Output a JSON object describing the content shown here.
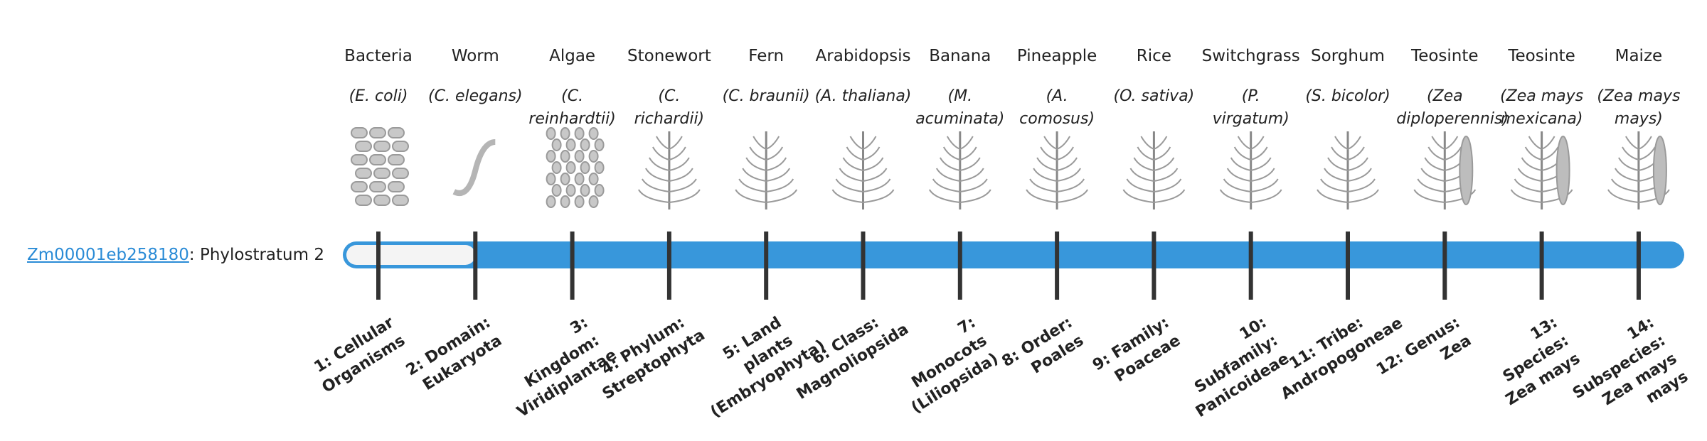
{
  "gene": {
    "id": "Zm00001eb258180",
    "phylostratum_text": ": Phylostratum 2"
  },
  "organisms": [
    {
      "name": "Bacteria",
      "species": "(E. coli)",
      "stratum": "1: Cellular Organisms"
    },
    {
      "name": "Worm",
      "species": "(C. elegans)",
      "stratum": "2: Domain: Eukaryota"
    },
    {
      "name": "Algae",
      "species": "(C. reinhardtii)",
      "stratum": "3: Kingdom: Viridiplantae"
    },
    {
      "name": "Stonewort",
      "species": "(C. richardii)",
      "stratum": "4: Phylum: Streptophyta"
    },
    {
      "name": "Fern",
      "species": "(C. braunii)",
      "stratum": "5: Land plants (Embryophyta)"
    },
    {
      "name": "Arabidopsis",
      "species": "(A. thaliana)",
      "stratum": "6: Class: Magnoliopsida"
    },
    {
      "name": "Banana",
      "species": "(M. acuminata)",
      "stratum": "7: Monocots (Liliopsida)"
    },
    {
      "name": "Pineapple",
      "species": "(A. comosus)",
      "stratum": "8: Order: Poales"
    },
    {
      "name": "Rice",
      "species": "(O. sativa)",
      "stratum": "9: Family: Poaceae"
    },
    {
      "name": "Switchgrass",
      "species": "(P. virgatum)",
      "stratum": "10: Subfamily: Panicoideae"
    },
    {
      "name": "Sorghum",
      "species": "(S. bicolor)",
      "stratum": "11: Tribe: Andropogoneae"
    },
    {
      "name": "Teosinte",
      "species": "(Zea diploperennis)",
      "stratum": "12: Genus: Zea"
    },
    {
      "name": "Teosinte",
      "species": "(Zea mays mexicana)",
      "stratum": "13: Species: Zea mays"
    },
    {
      "name": "Maize",
      "species": "(Zea mays mays)",
      "stratum": "14: Subspecies: Zea mays mays"
    }
  ]
}
